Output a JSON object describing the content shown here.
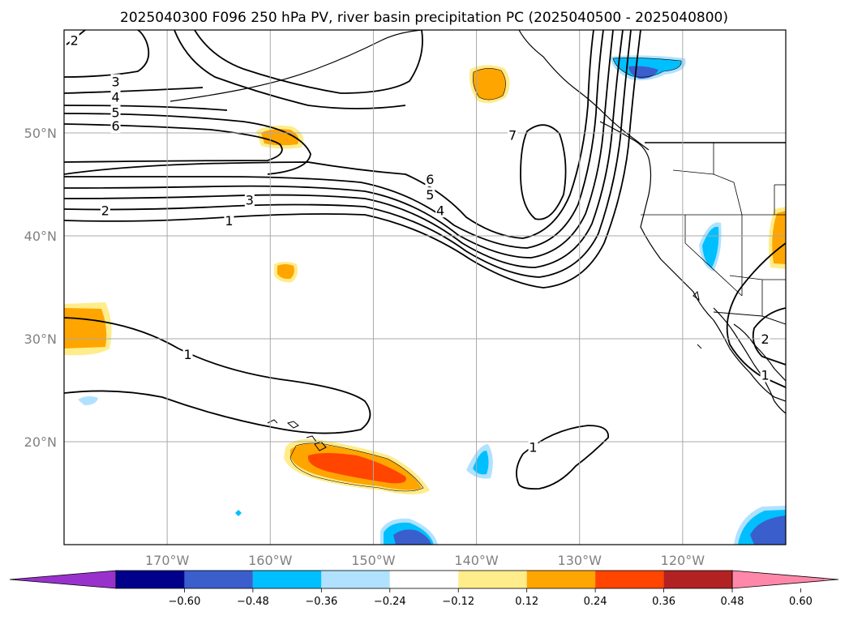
{
  "title": "2025040300 F096 250 hPa PV, river basin precipitation PC (2025040500 - 2025040800)",
  "map": {
    "lon_range": [
      -180,
      -110
    ],
    "lat_range": [
      10,
      60
    ],
    "lon_ticks": [
      {
        "lon": -170,
        "label": "170°W"
      },
      {
        "lon": -160,
        "label": "160°W"
      },
      {
        "lon": -150,
        "label": "150°W"
      },
      {
        "lon": -140,
        "label": "140°W"
      },
      {
        "lon": -130,
        "label": "130°W"
      },
      {
        "lon": -120,
        "label": "120°W"
      }
    ],
    "lat_ticks": [
      {
        "lat": 20,
        "label": "20°N"
      },
      {
        "lat": 30,
        "label": "30°N"
      },
      {
        "lat": 40,
        "label": "40°N"
      },
      {
        "lat": 50,
        "label": "50°N"
      }
    ],
    "grid": true,
    "land_color": "#ffffff",
    "coast_color": "#000000"
  },
  "pv_contour_labels": [
    {
      "text": "2",
      "lon": -179,
      "lat": 59
    },
    {
      "text": "3",
      "lon": -175,
      "lat": 55
    },
    {
      "text": "4",
      "lon": -175,
      "lat": 53.5
    },
    {
      "text": "5",
      "lon": -175,
      "lat": 52
    },
    {
      "text": "6",
      "lon": -175,
      "lat": 50.7
    },
    {
      "text": "2",
      "lon": -176,
      "lat": 42.5
    },
    {
      "text": "3",
      "lon": -162,
      "lat": 43.5
    },
    {
      "text": "1",
      "lon": -164,
      "lat": 41.5
    },
    {
      "text": "6",
      "lon": -144.5,
      "lat": 45.5
    },
    {
      "text": "5",
      "lon": -144.5,
      "lat": 44
    },
    {
      "text": "4",
      "lon": -143.5,
      "lat": 42.5
    },
    {
      "text": "7",
      "lon": -136.5,
      "lat": 49.8
    },
    {
      "text": "1",
      "lon": -168,
      "lat": 28.5
    },
    {
      "text": "1",
      "lon": -134.5,
      "lat": 19.5
    },
    {
      "text": "1",
      "lon": -112,
      "lat": 26.5
    },
    {
      "text": "2",
      "lon": -112,
      "lat": 30
    }
  ],
  "colorbar": {
    "ticks": [
      "−0.60",
      "−0.48",
      "−0.36",
      "−0.24",
      "−0.12",
      "0.12",
      "0.24",
      "0.36",
      "0.48",
      "0.60"
    ],
    "colors": [
      "#9932cc",
      "#00008b",
      "#3a5fcd",
      "#00bfff",
      "#b0e2ff",
      "#ffffff",
      "#ffec8b",
      "#ffa500",
      "#ff4500",
      "#b22222",
      "#ff88aa"
    ]
  }
}
